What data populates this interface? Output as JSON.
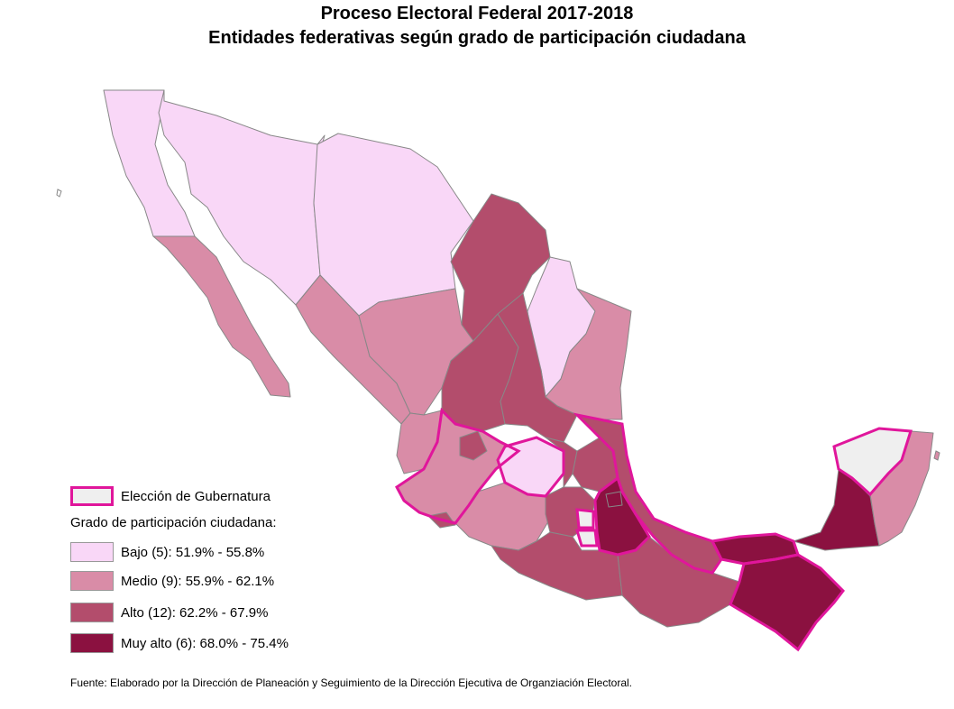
{
  "title_line1": "Proceso Electoral Federal 2017-2018",
  "title_line2": "Entidades federativas según grado de participación ciudadana",
  "colors": {
    "bajo": "#f9d7f7",
    "medio": "#d98ca7",
    "alto": "#b34d6c",
    "muy_alto": "#8b1140",
    "gubernatura_fill": "#efefef",
    "gubernatura_border": "#e0169b",
    "state_border": "#888888"
  },
  "legend": {
    "gubernatura_label": "Elección de Gubernatura",
    "heading": "Grado de participación ciudadana:",
    "classes": [
      {
        "label": "Bajo (5): 51.9% - 55.8%",
        "color_key": "bajo"
      },
      {
        "label": "Medio (9): 55.9% - 62.1%",
        "color_key": "medio"
      },
      {
        "label": "Alto (12): 62.2% - 67.9%",
        "color_key": "alto"
      },
      {
        "label": "Muy alto (6): 68.0% - 75.4%",
        "color_key": "muy_alto"
      }
    ]
  },
  "source": "Fuente: Elaborado por la Dirección de Planeación y Seguimiento de la Dirección Ejecutiva de Organziación Electoral."
}
